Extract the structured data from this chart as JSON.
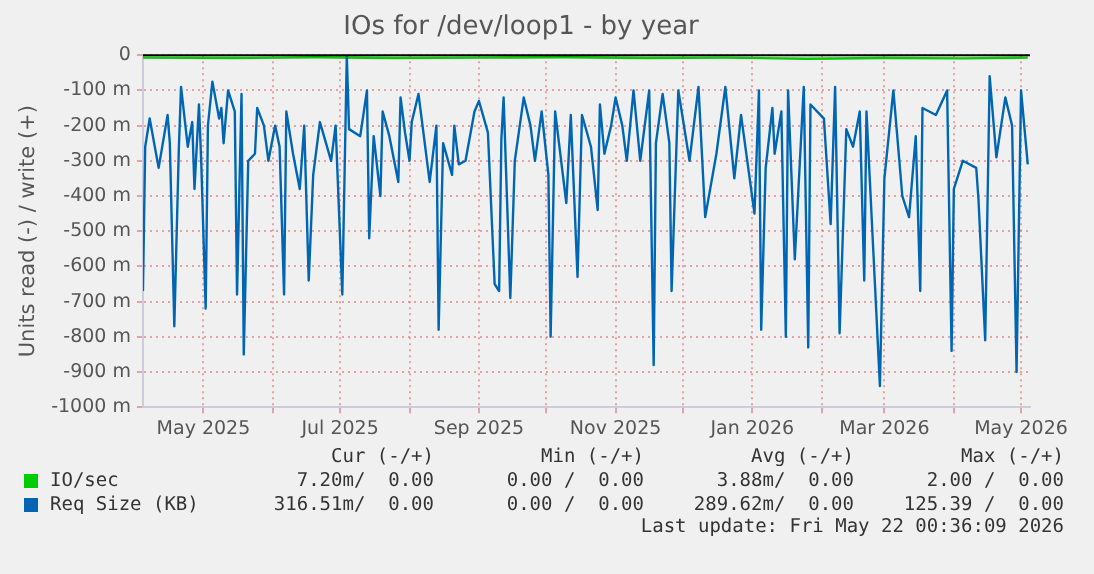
{
  "chart_data": {
    "type": "line",
    "title": "IOs for /dev/loop1 - by year",
    "ylabel": "Units read (-) / write (+)",
    "xlim": [
      "2025-04-04",
      "2026-05-05"
    ],
    "xticks": [
      {
        "value": "2025-05-01",
        "label": "May 2025"
      },
      {
        "value": "2025-06-01",
        "label": null
      },
      {
        "value": "2025-07-01",
        "label": "Jul 2025"
      },
      {
        "value": "2025-08-01",
        "label": null
      },
      {
        "value": "2025-09-01",
        "label": "Sep 2025"
      },
      {
        "value": "2025-10-01",
        "label": null
      },
      {
        "value": "2025-11-01",
        "label": "Nov 2025"
      },
      {
        "value": "2025-12-01",
        "label": null
      },
      {
        "value": "2026-01-01",
        "label": "Jan 2026"
      },
      {
        "value": "2026-02-01",
        "label": null
      },
      {
        "value": "2026-03-01",
        "label": "Mar 2026"
      },
      {
        "value": "2026-04-01",
        "label": null
      },
      {
        "value": "2026-05-01",
        "label": "May 2026"
      }
    ],
    "ylim": [
      -1000,
      0
    ],
    "yticks": [
      {
        "value": -1000,
        "label": "-1000 m"
      },
      {
        "value": -900,
        "label": "-900 m"
      },
      {
        "value": -800,
        "label": "-800 m"
      },
      {
        "value": -700,
        "label": "-700 m"
      },
      {
        "value": -600,
        "label": "-600 m"
      },
      {
        "value": -500,
        "label": "-500 m"
      },
      {
        "value": -400,
        "label": "-400 m"
      },
      {
        "value": -300,
        "label": "-300 m"
      },
      {
        "value": -200,
        "label": "-200 m"
      },
      {
        "value": -100,
        "label": "-100 m"
      },
      0
    ],
    "grid": true,
    "legend": "bottom",
    "marker": "none",
    "line_style": "solid",
    "series": [
      {
        "name": "IO/sec",
        "color": "#00cc00",
        "x": [
          "2025-04-04",
          "2025-05-15",
          "2025-06-20",
          "2025-07-25",
          "2025-09-01",
          "2025-10-10",
          "2025-11-15",
          "2025-12-20",
          "2026-01-25",
          "2026-03-01",
          "2026-04-05",
          "2026-05-04"
        ],
        "values": [
          -7,
          -8,
          -6,
          -8,
          -7,
          -6,
          -8,
          -7,
          -10,
          -8,
          -9,
          -7
        ]
      },
      {
        "name": "Req Size (KB)",
        "color": "#0066b3",
        "x": [
          "2025-04-04",
          "2025-04-05",
          "2025-04-07",
          "2025-04-11",
          "2025-04-15",
          "2025-04-16",
          "2025-04-18",
          "2025-04-20",
          "2025-04-21",
          "2025-04-24",
          "2025-04-26",
          "2025-04-27",
          "2025-04-29",
          "2025-04-30",
          "2025-05-02",
          "2025-05-03",
          "2025-05-05",
          "2025-05-08",
          "2025-05-09",
          "2025-05-10",
          "2025-05-12",
          "2025-05-15",
          "2025-05-16",
          "2025-05-18",
          "2025-05-19",
          "2025-05-21",
          "2025-05-24",
          "2025-05-25",
          "2025-05-28",
          "2025-05-30",
          "2025-06-02",
          "2025-06-04",
          "2025-06-06",
          "2025-06-07",
          "2025-06-10",
          "2025-06-13",
          "2025-06-15",
          "2025-06-17",
          "2025-06-19",
          "2025-06-22",
          "2025-06-27",
          "2025-06-29",
          "2025-07-02",
          "2025-07-04",
          "2025-07-05",
          "2025-07-10",
          "2025-07-13",
          "2025-07-14",
          "2025-07-16",
          "2025-07-19",
          "2025-07-20",
          "2025-07-23",
          "2025-07-27",
          "2025-07-28",
          "2025-07-30",
          "2025-08-01",
          "2025-08-02",
          "2025-08-05",
          "2025-08-10",
          "2025-08-13",
          "2025-08-14",
          "2025-08-16",
          "2025-08-20",
          "2025-08-21",
          "2025-08-23",
          "2025-08-26",
          "2025-08-30",
          "2025-09-01",
          "2025-09-05",
          "2025-09-08",
          "2025-09-10",
          "2025-09-11",
          "2025-09-12",
          "2025-09-15",
          "2025-09-17",
          "2025-09-21",
          "2025-09-24",
          "2025-09-26",
          "2025-09-29",
          "2025-10-02",
          "2025-10-03",
          "2025-10-05",
          "2025-10-10",
          "2025-10-12",
          "2025-10-15",
          "2025-10-17",
          "2025-10-21",
          "2025-10-24",
          "2025-10-25",
          "2025-10-27",
          "2025-10-30",
          "2025-11-01",
          "2025-11-04",
          "2025-11-06",
          "2025-11-09",
          "2025-11-12",
          "2025-11-16",
          "2025-11-18",
          "2025-11-19",
          "2025-11-22",
          "2025-11-25",
          "2025-11-26",
          "2025-11-29",
          "2025-12-04",
          "2025-12-08",
          "2025-12-11",
          "2025-12-16",
          "2025-12-20",
          "2025-12-24",
          "2025-12-27",
          "2026-01-02",
          "2026-01-04",
          "2026-01-05",
          "2026-01-07",
          "2026-01-10",
          "2026-01-11",
          "2026-01-14",
          "2026-01-16",
          "2026-01-17",
          "2026-01-20",
          "2026-01-24",
          "2026-01-26",
          "2026-01-27",
          "2026-02-02",
          "2026-02-05",
          "2026-02-07",
          "2026-02-09",
          "2026-02-12",
          "2026-02-15",
          "2026-02-18",
          "2026-02-20",
          "2026-02-21",
          "2026-02-27",
          "2026-03-01",
          "2026-03-05",
          "2026-03-09",
          "2026-03-12",
          "2026-03-15",
          "2026-03-17",
          "2026-03-18",
          "2026-03-24",
          "2026-03-29",
          "2026-03-31",
          "2026-04-01",
          "2026-04-05",
          "2026-04-11",
          "2026-04-12",
          "2026-04-15",
          "2026-04-17",
          "2026-04-20",
          "2026-04-24",
          "2026-04-27",
          "2026-04-29",
          "2026-05-01",
          "2026-05-04"
        ],
        "values": [
          -670,
          -260,
          -180,
          -320,
          -170,
          -250,
          -770,
          -270,
          -90,
          -260,
          -190,
          -380,
          -140,
          -300,
          -720,
          -200,
          -75,
          -180,
          -150,
          -250,
          -100,
          -160,
          -680,
          -110,
          -850,
          -300,
          -280,
          -150,
          -200,
          -300,
          -200,
          -260,
          -680,
          -160,
          -280,
          -380,
          -200,
          -640,
          -340,
          -190,
          -300,
          -200,
          -680,
          0,
          -210,
          -230,
          -100,
          -520,
          -230,
          -400,
          -160,
          -230,
          -360,
          -120,
          -220,
          -300,
          -190,
          -110,
          -360,
          -200,
          -780,
          -250,
          -340,
          -200,
          -310,
          -300,
          -160,
          -130,
          -220,
          -650,
          -670,
          -240,
          -120,
          -690,
          -300,
          -120,
          -200,
          -300,
          -160,
          -340,
          -800,
          -160,
          -420,
          -170,
          -630,
          -170,
          -260,
          -440,
          -140,
          -280,
          -200,
          -120,
          -200,
          -300,
          -100,
          -300,
          -100,
          -880,
          -250,
          -110,
          -250,
          -670,
          -100,
          -300,
          -90,
          -460,
          -280,
          -90,
          -350,
          -170,
          -450,
          -100,
          -780,
          -320,
          -150,
          -280,
          -160,
          -800,
          -100,
          -580,
          -90,
          -830,
          -140,
          -180,
          -480,
          -90,
          -790,
          -210,
          -260,
          -160,
          -640,
          -160,
          -940,
          -350,
          -100,
          -400,
          -460,
          -230,
          -670,
          -150,
          -170,
          -100,
          -840,
          -380,
          -300,
          -320,
          -410,
          -810,
          -60,
          -290,
          -120,
          -200,
          -900,
          -100,
          -310
        ]
      }
    ],
    "annotations": [
      "Cur (-/+)",
      "Min (-/+)",
      "Avg (-/+)",
      "Max (-/+)",
      "7.20m/  0.00",
      "0.00 /  0.00",
      "3.88m/  0.00",
      "2.00 /  0.00",
      "316.51m/  0.00",
      "0.00 /  0.00",
      "289.62m/  0.00",
      "125.39 /  0.00",
      "Last update: Fri May 22 00:36:09 2026"
    ]
  }
}
